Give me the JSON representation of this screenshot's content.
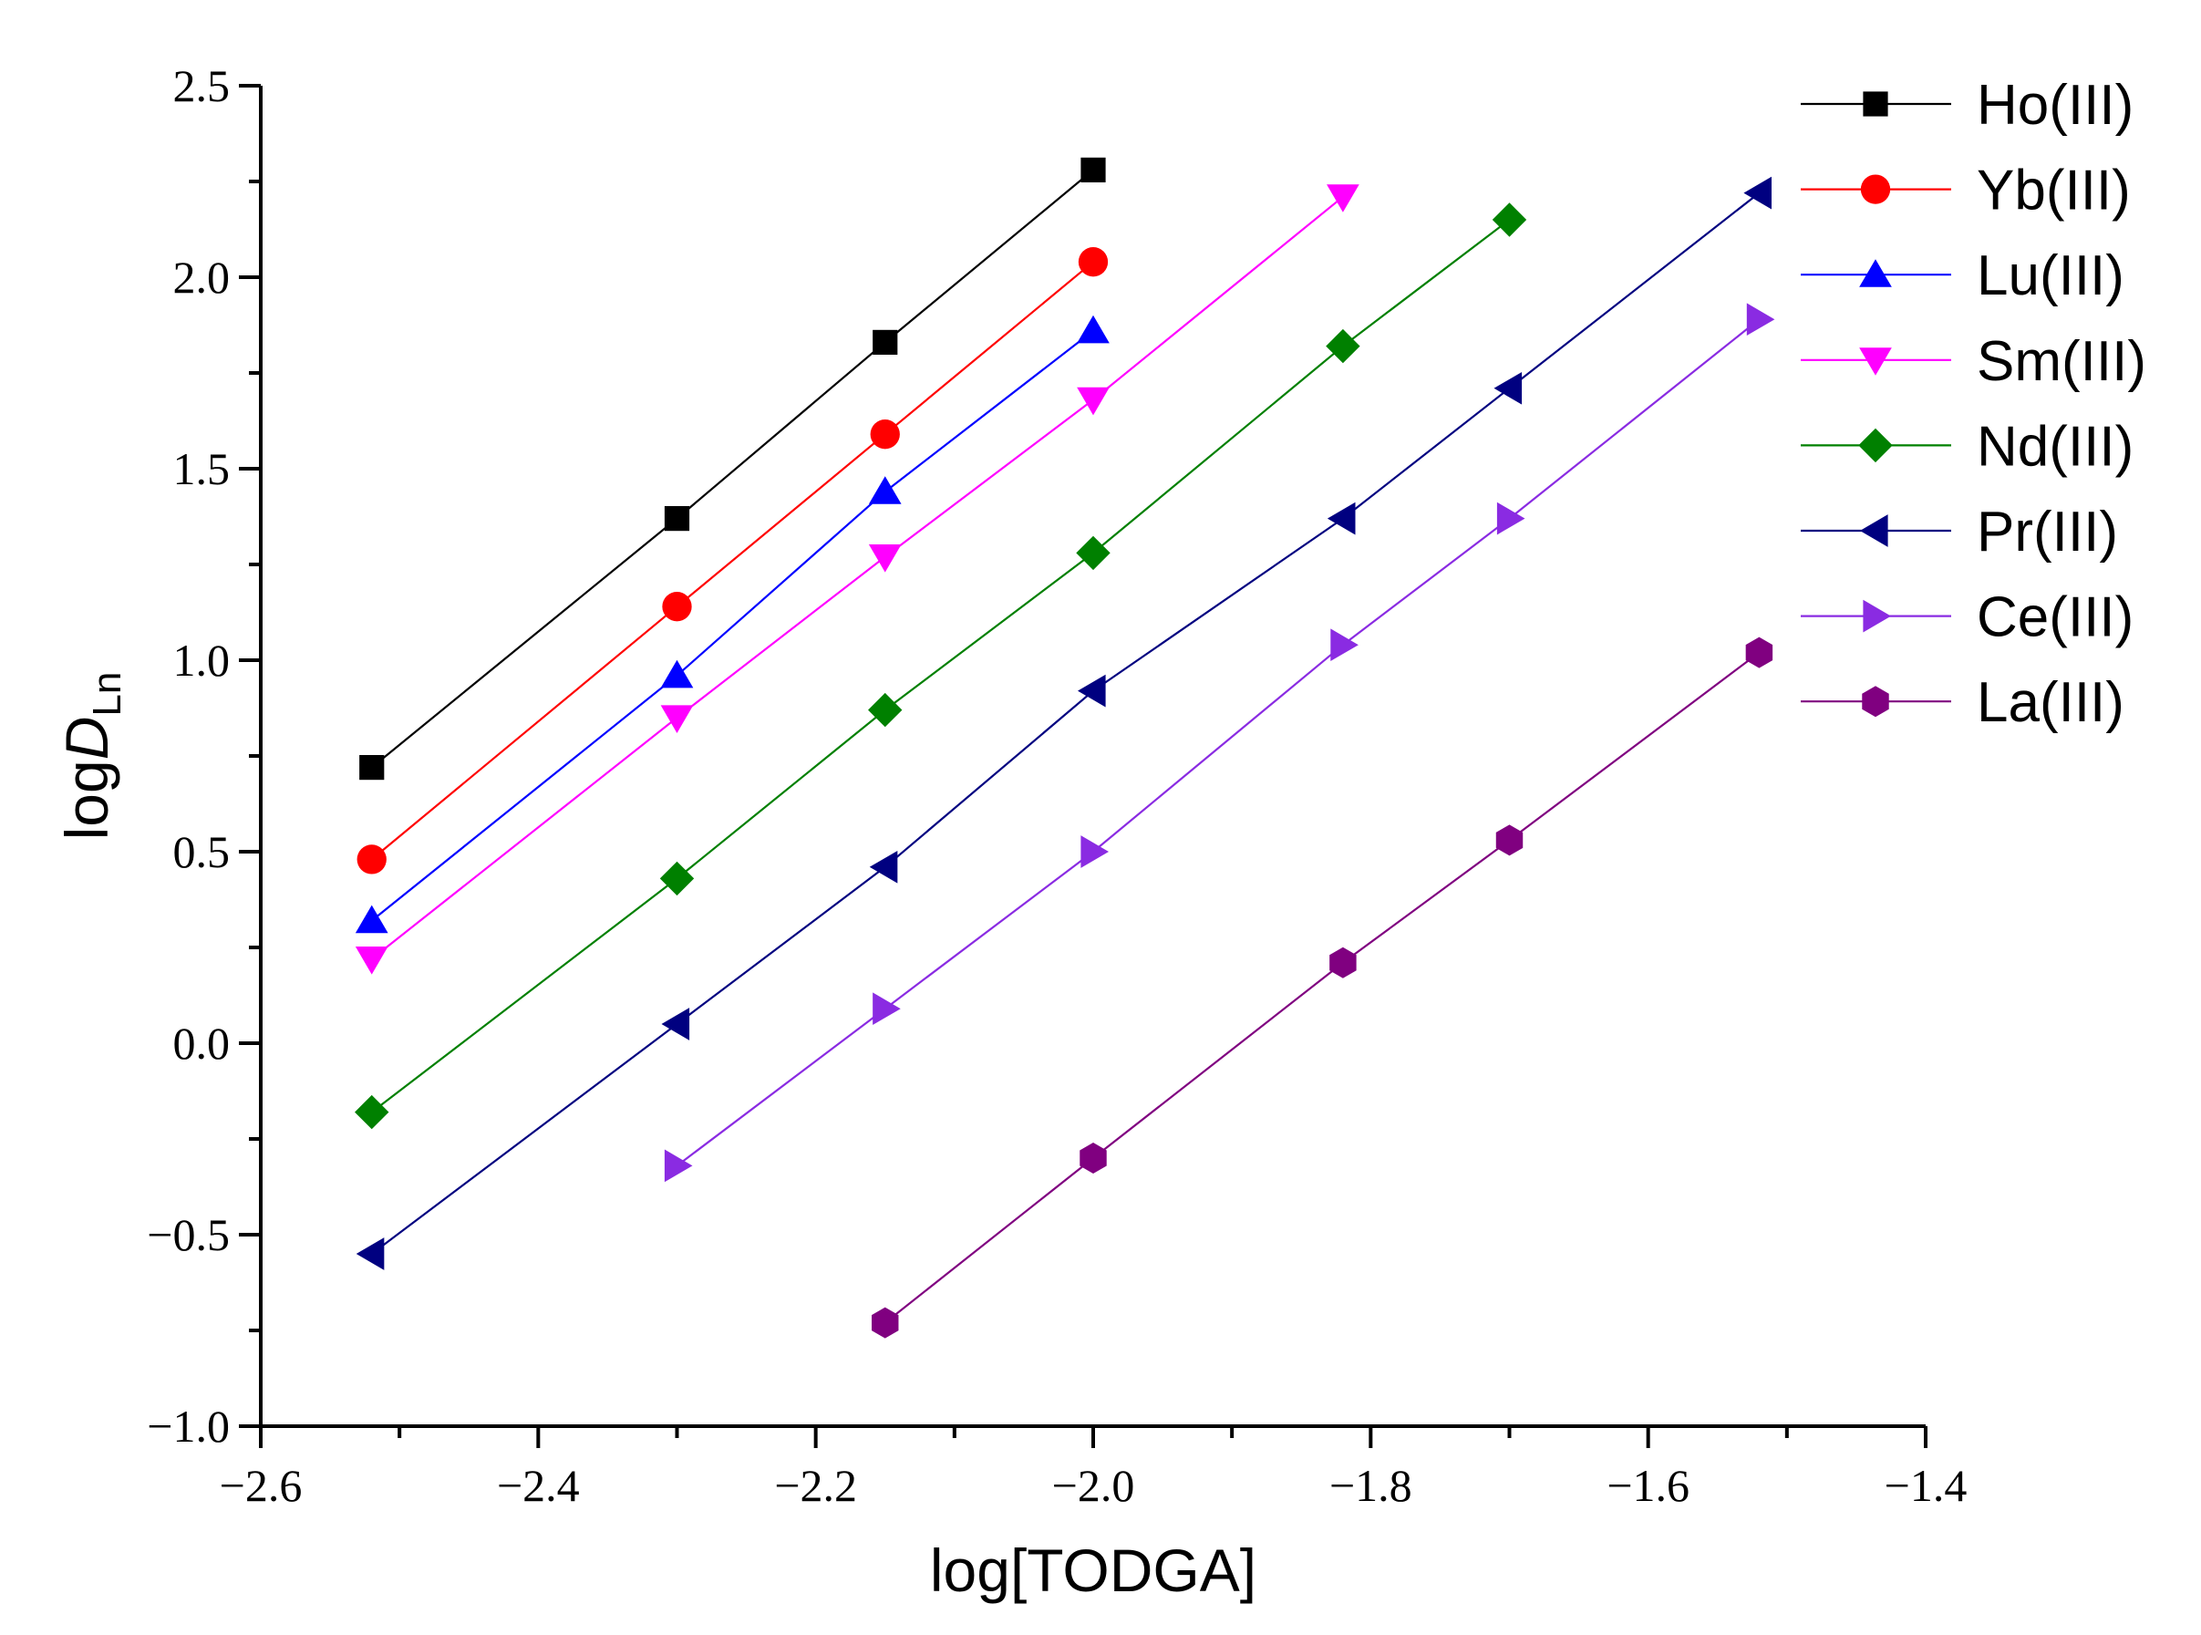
{
  "chart_data": {
    "type": "line",
    "title": "",
    "xlabel": "log[TODGA]",
    "ylabel": {
      "prefix": "log",
      "italic": "D",
      "subscript": "Ln"
    },
    "xlim": [
      -2.6,
      -1.4
    ],
    "ylim": [
      -1.0,
      2.5
    ],
    "x_major_ticks": [
      -2.6,
      -2.4,
      -2.2,
      -2.0,
      -1.8,
      -1.6,
      -1.4
    ],
    "x_tick_labels": [
      "−2.6",
      "−2.4",
      "−2.2",
      "−2.0",
      "−1.8",
      "−1.6",
      "−1.4"
    ],
    "x_minor_ticks": [
      -2.5,
      -2.3,
      -2.1,
      -1.9,
      -1.7,
      -1.5
    ],
    "y_major_ticks": [
      -1.0,
      -0.5,
      0.0,
      0.5,
      1.0,
      1.5,
      2.0,
      2.5
    ],
    "y_tick_labels": [
      "−1.0",
      "−0.5",
      "0.0",
      "0.5",
      "1.0",
      "1.5",
      "2.0",
      "2.5"
    ],
    "y_minor_ticks": [
      -0.75,
      -0.25,
      0.25,
      0.75,
      1.25,
      1.75,
      2.25
    ],
    "grid": false,
    "legend_position": "top-right",
    "series": [
      {
        "name": "Ho(III)",
        "color": "#000000",
        "marker": "square",
        "x": [
          -2.52,
          -2.3,
          -2.15,
          -2.0
        ],
        "y": [
          0.72,
          1.37,
          1.83,
          2.28
        ]
      },
      {
        "name": "Yb(III)",
        "color": "#ff0000",
        "marker": "circle",
        "x": [
          -2.52,
          -2.3,
          -2.15,
          -2.0
        ],
        "y": [
          0.48,
          1.14,
          1.59,
          2.04
        ]
      },
      {
        "name": "Lu(III)",
        "color": "#0000ff",
        "marker": "triangle-up",
        "x": [
          -2.52,
          -2.3,
          -2.15,
          -2.0
        ],
        "y": [
          0.32,
          0.96,
          1.44,
          1.86
        ]
      },
      {
        "name": "Sm(III)",
        "color": "#ff00ff",
        "marker": "triangle-down",
        "x": [
          -2.52,
          -2.3,
          -2.15,
          -2.0,
          -1.82
        ],
        "y": [
          0.22,
          0.85,
          1.27,
          1.68,
          2.21
        ]
      },
      {
        "name": "Nd(III)",
        "color": "#008000",
        "marker": "diamond",
        "x": [
          -2.52,
          -2.3,
          -2.15,
          -2.0,
          -1.82,
          -1.7
        ],
        "y": [
          -0.18,
          0.43,
          0.87,
          1.28,
          1.82,
          2.15
        ]
      },
      {
        "name": "Pr(III)",
        "color": "#000080",
        "marker": "triangle-left",
        "x": [
          -2.52,
          -2.3,
          -2.15,
          -2.0,
          -1.82,
          -1.7,
          -1.52
        ],
        "y": [
          -0.55,
          0.05,
          0.46,
          0.92,
          1.37,
          1.71,
          2.22
        ]
      },
      {
        "name": "Ce(III)",
        "color": "#8a2be2",
        "marker": "triangle-right",
        "x": [
          -2.3,
          -2.15,
          -2.0,
          -1.82,
          -1.7,
          -1.52
        ],
        "y": [
          -0.32,
          0.09,
          0.5,
          1.04,
          1.37,
          1.89
        ]
      },
      {
        "name": "La(III)",
        "color": "#800080",
        "marker": "hexagon",
        "x": [
          -2.15,
          -2.0,
          -1.82,
          -1.7,
          -1.52
        ],
        "y": [
          -0.73,
          -0.3,
          0.21,
          0.53,
          1.02
        ]
      }
    ]
  }
}
